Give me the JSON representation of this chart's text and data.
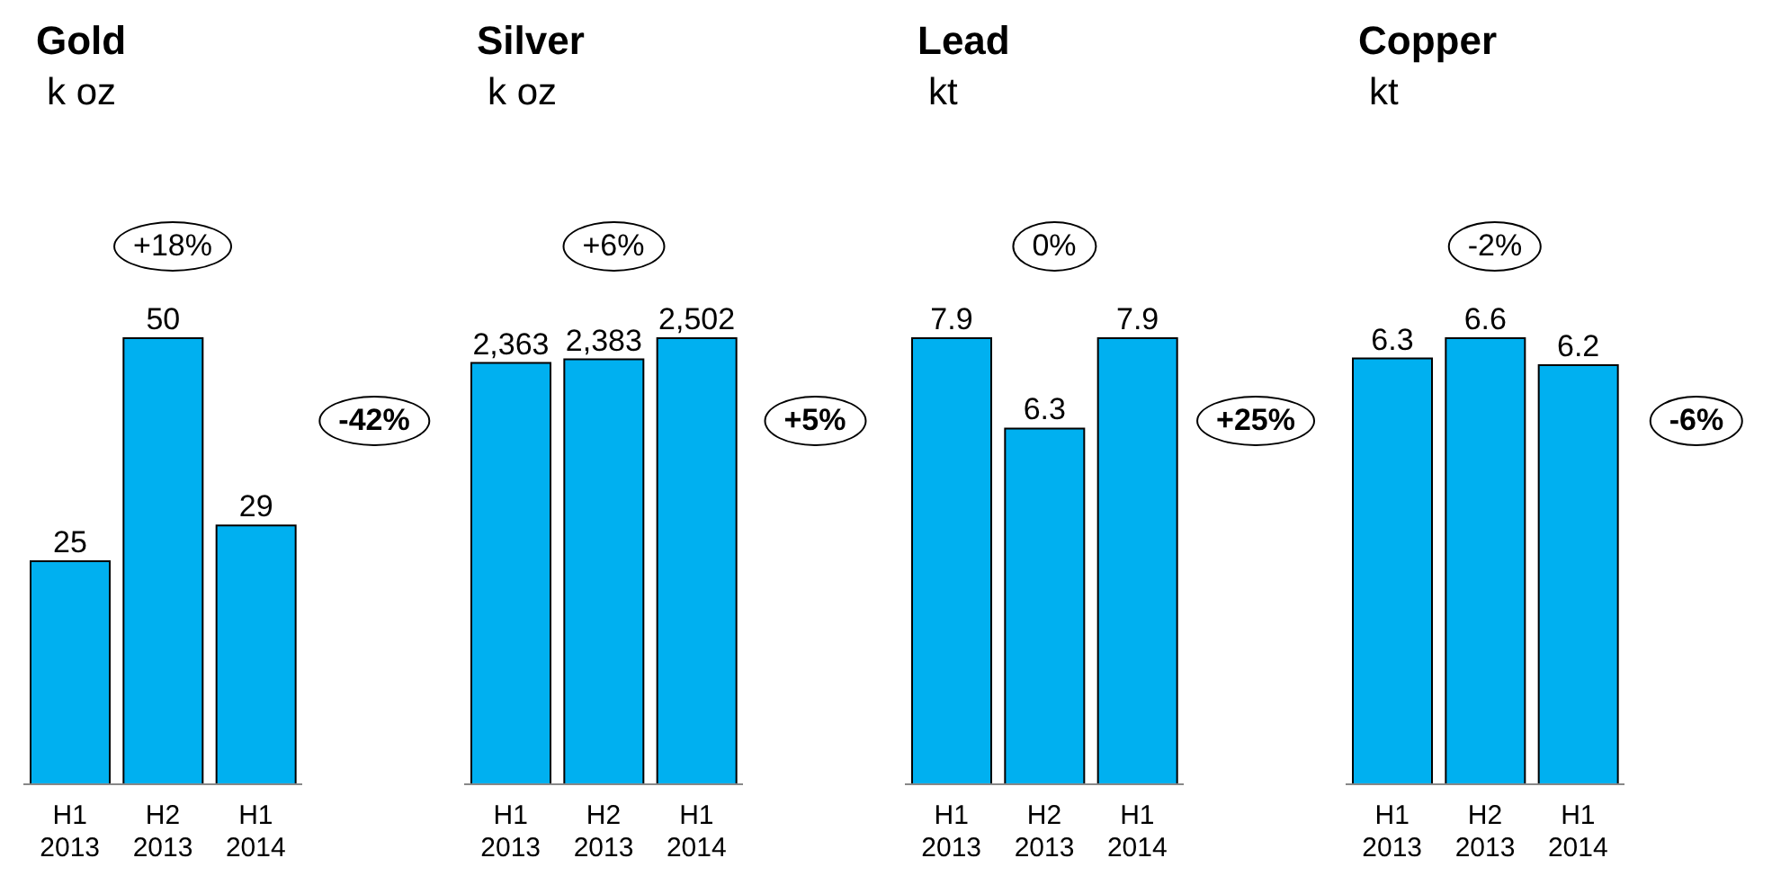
{
  "chart_data": [
    {
      "type": "bar",
      "title": "Gold",
      "subtitle": "k oz",
      "categories": [
        "H1 2013",
        "H2 2013",
        "H1 2014"
      ],
      "values": [
        25,
        50,
        29
      ],
      "color": "#00b0f0",
      "data_labels": true,
      "annotations": [
        "+18%",
        "-42%"
      ]
    },
    {
      "type": "bar",
      "title": "Silver",
      "subtitle": "k oz",
      "categories": [
        "H1 2013",
        "H2 2013",
        "H1 2014"
      ],
      "values": [
        2363,
        2383,
        2502
      ],
      "value_labels": [
        "2,363",
        "2,383",
        "2,502"
      ],
      "color": "#00b0f0",
      "annotations": [
        "+6%",
        "+5%"
      ]
    },
    {
      "type": "bar",
      "title": "Lead",
      "subtitle": "kt",
      "categories": [
        "H1 2013",
        "H2 2013",
        "H1 2014"
      ],
      "values": [
        7.9,
        6.3,
        7.9
      ],
      "color": "#00b0f0",
      "data_labels": true,
      "annotations": [
        "0%",
        "+25%"
      ]
    },
    {
      "type": "bar",
      "title": "Copper",
      "subtitle": "kt",
      "categories": [
        "H1 2013",
        "H2 2013",
        "H1 2014"
      ],
      "values": [
        6.3,
        6.6,
        6.2
      ],
      "color": "#00b0f0",
      "data_labels": true,
      "annotations": [
        "-2%",
        "-6%"
      ]
    }
  ]
}
